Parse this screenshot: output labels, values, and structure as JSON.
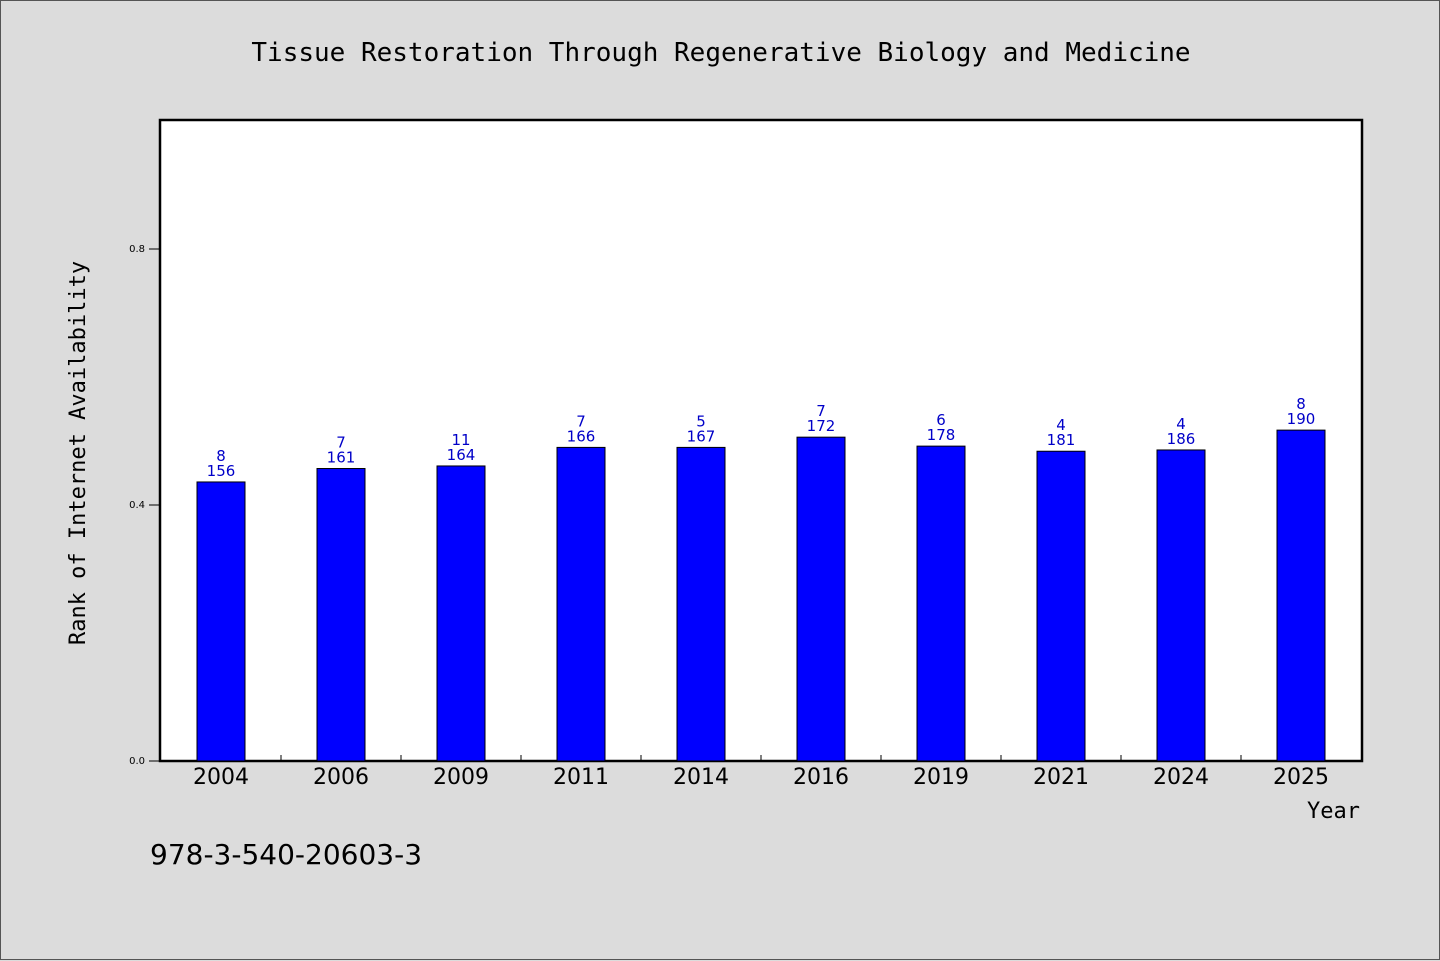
{
  "colors": {
    "background": "#dcdcdc",
    "plot_background": "#ffffff",
    "bar_fill": "#0000ff",
    "bar_label": "#0000c8"
  },
  "footer": {
    "text": "978-3-540-20603-3"
  },
  "chart_data": {
    "type": "bar",
    "title": "Tissue Restoration Through Regenerative Biology and Medicine",
    "xlabel": "Year",
    "ylabel": "Rank of Internet Availability",
    "ylim": [
      0,
      1.0
    ],
    "yticks": [
      "0.0",
      "0.4",
      "0.8"
    ],
    "categories": [
      "2004",
      "2006",
      "2009",
      "2011",
      "2014",
      "2016",
      "2019",
      "2021",
      "2024",
      "2025"
    ],
    "values": [
      0.436,
      0.457,
      0.461,
      0.49,
      0.49,
      0.506,
      0.492,
      0.484,
      0.486,
      0.517
    ],
    "labels_top": [
      "8",
      "7",
      "11",
      "7",
      "5",
      "7",
      "6",
      "4",
      "4",
      "8"
    ],
    "labels_bottom": [
      "156",
      "161",
      "164",
      "166",
      "167",
      "172",
      "178",
      "181",
      "186",
      "190"
    ],
    "grid": false,
    "legend": "none"
  }
}
